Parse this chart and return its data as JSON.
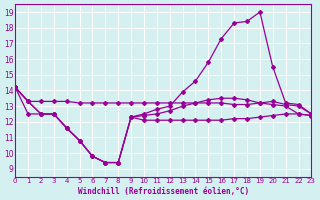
{
  "xlabel": "Windchill (Refroidissement éolien,°C)",
  "ylabel": "",
  "background_color": "#d4f0f0",
  "grid_color": "#ffffff",
  "line_color": "#990099",
  "ylim": [
    9,
    19
  ],
  "xlim": [
    0,
    23
  ],
  "yticks": [
    9,
    10,
    11,
    12,
    13,
    14,
    15,
    16,
    17,
    18,
    19
  ],
  "xticks": [
    0,
    1,
    2,
    3,
    4,
    5,
    6,
    7,
    8,
    9,
    10,
    11,
    12,
    13,
    14,
    15,
    16,
    17,
    18,
    19,
    20,
    21,
    22,
    23
  ],
  "series": [
    {
      "x": [
        0,
        1,
        2,
        3,
        4,
        5,
        6,
        7,
        8,
        9,
        10,
        11,
        12,
        13,
        14,
        15,
        16,
        17,
        18,
        19,
        20,
        21,
        22,
        23
      ],
      "y": [
        14.2,
        13.3,
        13.3,
        13.3,
        13.3,
        13.2,
        13.2,
        13.2,
        13.2,
        13.2,
        13.2,
        13.2,
        13.2,
        13.2,
        13.2,
        13.2,
        13.2,
        13.1,
        13.1,
        13.2,
        13.3,
        13.1,
        13.0,
        12.5
      ]
    },
    {
      "x": [
        0,
        1,
        2,
        3,
        4,
        5,
        6,
        7,
        8,
        9,
        10,
        11,
        12,
        13,
        14,
        15,
        16,
        17,
        18,
        19,
        20,
        21,
        22,
        23
      ],
      "y": [
        14.2,
        12.5,
        12.5,
        12.5,
        11.6,
        10.8,
        9.8,
        9.4,
        9.4,
        12.3,
        12.1,
        12.1,
        12.1,
        12.1,
        12.1,
        12.1,
        12.1,
        12.2,
        12.2,
        12.3,
        12.4,
        12.5,
        12.5,
        12.4
      ]
    },
    {
      "x": [
        0,
        1,
        2,
        3,
        4,
        5,
        6,
        7,
        8,
        9,
        10,
        11,
        12,
        13,
        14,
        15,
        16,
        17,
        18,
        19,
        20,
        21,
        22,
        23
      ],
      "y": [
        14.2,
        13.3,
        12.5,
        12.5,
        11.6,
        10.8,
        9.8,
        9.4,
        9.4,
        12.3,
        12.5,
        12.8,
        13.0,
        13.9,
        14.6,
        15.8,
        17.3,
        18.3,
        18.4,
        19.0,
        15.5,
        13.2,
        13.1,
        12.5
      ]
    },
    {
      "x": [
        0,
        1,
        2,
        3,
        4,
        5,
        6,
        7,
        8,
        9,
        10,
        11,
        12,
        13,
        14,
        15,
        16,
        17,
        18,
        19,
        20,
        21,
        22,
        23
      ],
      "y": [
        14.2,
        13.3,
        12.5,
        12.5,
        11.6,
        10.8,
        9.8,
        9.4,
        9.4,
        12.3,
        12.4,
        12.5,
        12.7,
        13.0,
        13.2,
        13.4,
        13.5,
        13.5,
        13.4,
        13.2,
        13.1,
        13.0,
        12.5,
        12.4
      ]
    }
  ]
}
